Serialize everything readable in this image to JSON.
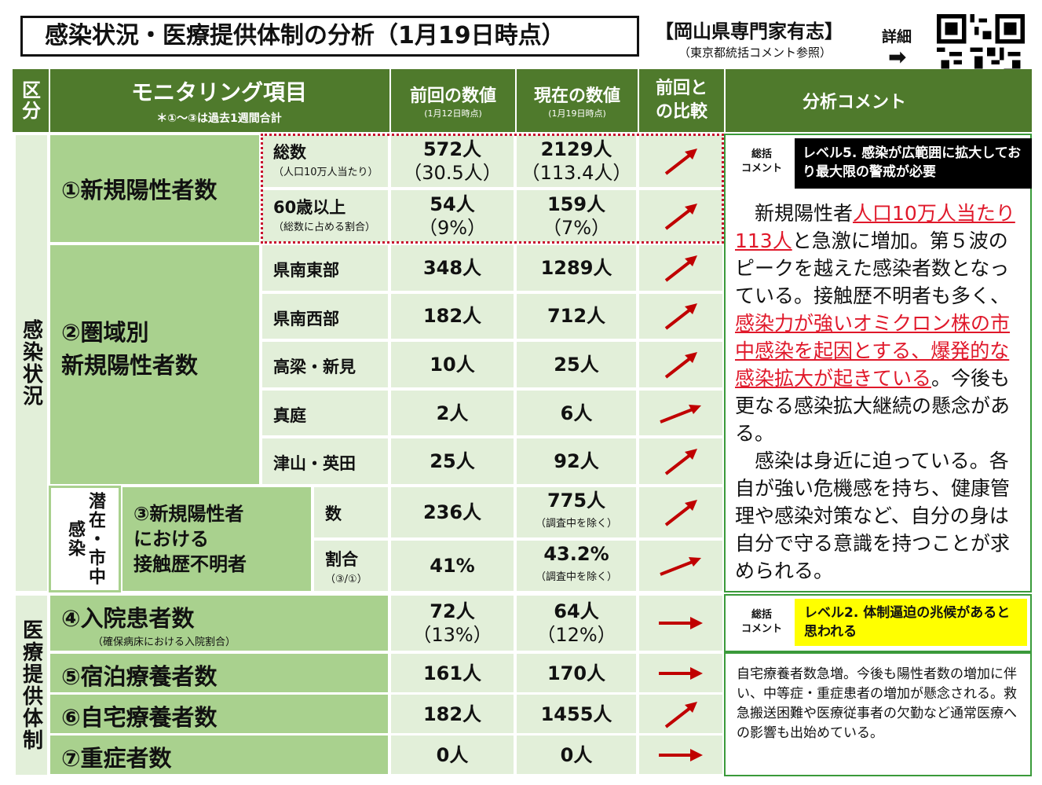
{
  "header": {
    "title": "感染状況・医療提供体制の分析（1月19日時点）",
    "source": "【岡山県専門家有志】",
    "source_note": "（東京都統括コメント参照）",
    "detail": "詳細",
    "detail_arrow": "➡"
  },
  "table_header": {
    "col_kubun": "区分",
    "col_item": "モニタリング項目",
    "col_item_note": "＊①～③は過去1週間合計",
    "col_prev": "前回の数値",
    "col_prev_note": "(1月12日時点)",
    "col_curr": "現在の数値",
    "col_curr_note": "(1月19日時点)",
    "col_compare": "前回との比較",
    "col_comment": "分析コメント"
  },
  "sections": {
    "infection": "感染状況",
    "medical": "医療提供体制",
    "hidden": "潜在・市中感染"
  },
  "rows": {
    "r1": {
      "label": "①新規陽性者数",
      "subs": [
        {
          "label": "総数",
          "note": "（人口10万人当たり）",
          "prev": "572人",
          "prev2": "（30.5人）",
          "curr": "2129人",
          "curr2": "（113.4人）"
        },
        {
          "label": "60歳以上",
          "note": "（総数に占める割合）",
          "prev": "54人",
          "prev2": "（9%）",
          "curr": "159人",
          "curr2": "（7%）"
        }
      ]
    },
    "r2": {
      "label1": "②圏域別",
      "label2": "新規陽性者数",
      "subs": [
        {
          "label": "県南東部",
          "prev": "348人",
          "curr": "1289人"
        },
        {
          "label": "県南西部",
          "prev": "182人",
          "curr": "712人"
        },
        {
          "label": "高梁・新見",
          "prev": "10人",
          "curr": "25人"
        },
        {
          "label": "真庭",
          "prev": "2人",
          "curr": "6人"
        },
        {
          "label": "津山・英田",
          "prev": "25人",
          "curr": "92人"
        }
      ]
    },
    "r3": {
      "label1": "③新規陽性者",
      "label2": "における",
      "label3": "接触歴不明者",
      "subs": [
        {
          "label": "数",
          "prev": "236人",
          "curr": "775人",
          "curr_note": "（調査中を除く）"
        },
        {
          "label": "割合",
          "note": "（③/①）",
          "prev": "41%",
          "curr": "43.2%",
          "curr_note": "（調査中を除く）"
        }
      ]
    },
    "r4": {
      "label": "④入院患者数",
      "note": "（確保病床における入院割合）",
      "prev": "72人",
      "prev2": "（13%）",
      "curr": "64人",
      "curr2": "（12%）"
    },
    "r5": {
      "label": "⑤宿泊療養者数",
      "prev": "161人",
      "curr": "170人"
    },
    "r6": {
      "label": "⑥自宅療養者数",
      "prev": "182人",
      "curr": "1455人"
    },
    "r7": {
      "label": "⑦重症者数",
      "prev": "0人",
      "curr": "0人"
    }
  },
  "comment1": {
    "tag": "総括\nコメント",
    "tag_a": "総括",
    "tag_b": "コメント",
    "level": "レベル5. 感染が広範囲に拡大しており最大限の警戒が必要",
    "p1a": "新規陽性者",
    "p1b": "人口10万人当たり113人",
    "p1c": "と急激に増加。第５波のピークを越えた感染者数となっている。接触歴不明者も多く、",
    "p1d": "感染力が強いオミクロン株の市中感染を起因とする、爆発的な感染拡大が起きている",
    "p1e": "。今後も更なる感染拡大継続の懸念がある。",
    "p2": "感染は身近に迫っている。各自が強い危機感を持ち、健康管理や感染対策など、自分の身は自分で守る意識を持つことが求められる。"
  },
  "comment2": {
    "tag_a": "総括",
    "tag_b": "コメント",
    "level": "レベル2. 体制逼迫の兆候があると思われる",
    "body": "自宅療養者数急増。今後も陽性者数の増加に伴い、中等症・重症患者の増加が懸念される。救急搬送困難や医療従事者の欠勤など通常医療への影響も出始めている。"
  },
  "colors": {
    "dark_green": "#4f7a2c",
    "light_green": "#a9d18e",
    "pale_green": "#e2efd9",
    "arrow_red": "#c00000",
    "level_black": "#000000",
    "level_yellow": "#ffff00"
  },
  "icons": {
    "qr": "qr-code-icon",
    "up": "arrow-up-right-icon",
    "right": "arrow-right-icon"
  }
}
